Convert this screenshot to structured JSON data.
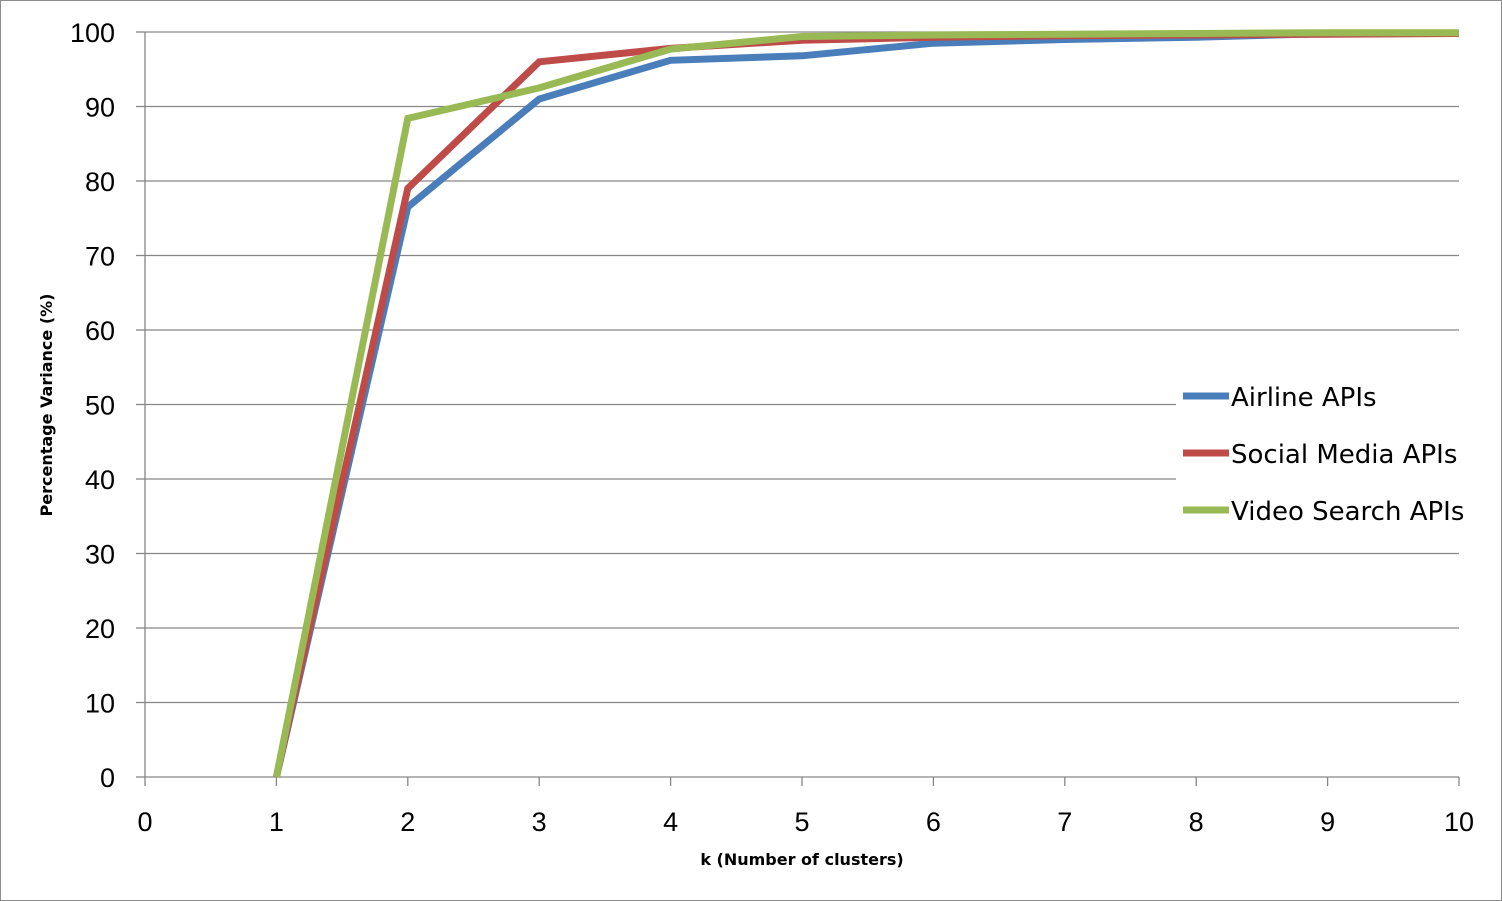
{
  "chart_data": {
    "type": "line",
    "title": "",
    "xlabel": "k (Number of clusters)",
    "ylabel": "Percentage Variance (%)",
    "xlim": [
      0,
      10
    ],
    "ylim": [
      0,
      100
    ],
    "x_ticks": [
      "0",
      "1",
      "2",
      "3",
      "4",
      "5",
      "6",
      "7",
      "8",
      "9",
      "10"
    ],
    "y_ticks": [
      "0",
      "10",
      "20",
      "30",
      "40",
      "50",
      "60",
      "70",
      "80",
      "90",
      "100"
    ],
    "grid": "horizontal",
    "legend_position": "right",
    "x": [
      1,
      2,
      3,
      4,
      5,
      6,
      7,
      8,
      9,
      10
    ],
    "series": [
      {
        "name": "Airline APIs",
        "color": "#4a7ebb",
        "values": [
          0,
          76.5,
          91,
          96.2,
          96.8,
          98.5,
          99,
          99.3,
          99.8,
          99.8
        ]
      },
      {
        "name": "Social Media APIs",
        "color": "#be4b48",
        "values": [
          0,
          79,
          96,
          97.8,
          98.9,
          99.3,
          99.5,
          99.6,
          99.7,
          99.8
        ]
      },
      {
        "name": "Video Search APIs",
        "color": "#98b954",
        "values": [
          0,
          88.4,
          92.5,
          97.7,
          99.4,
          99.6,
          99.7,
          99.8,
          99.9,
          99.9
        ]
      }
    ]
  }
}
